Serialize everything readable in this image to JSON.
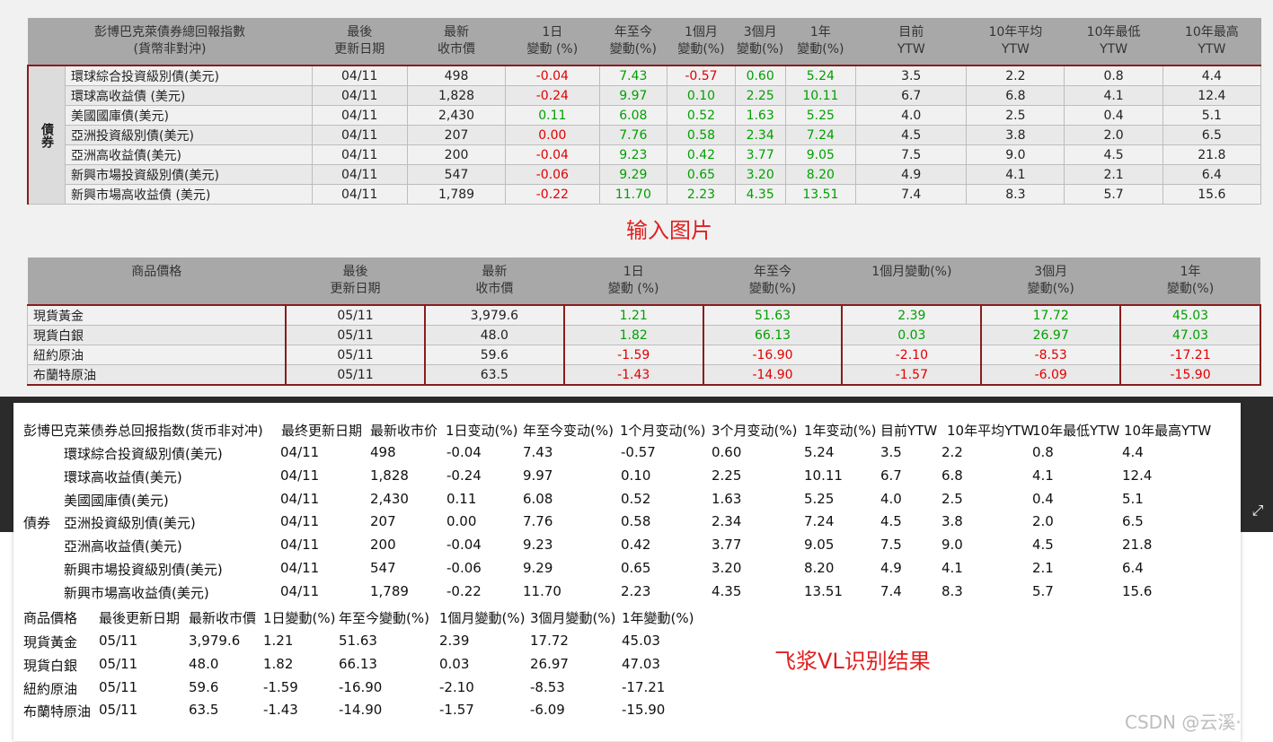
{
  "bond_table": {
    "headers": [
      {
        "l1": "彭博巴克萊債券總回報指數",
        "l2": "(貨幣非對沖)"
      },
      {
        "l1": "最後",
        "l2": "更新日期"
      },
      {
        "l1": "最新",
        "l2": "收市價"
      },
      {
        "l1": "1日",
        "l2": "變動 (%)"
      },
      {
        "l1": "年至今",
        "l2": "變動(%)"
      },
      {
        "l1": "1個月",
        "l2": "變動(%)"
      },
      {
        "l1": "3個月",
        "l2": "變動(%)"
      },
      {
        "l1": "1年",
        "l2": "變動(%)"
      },
      {
        "l1": "目前",
        "l2": "YTW"
      },
      {
        "l1": "10年平均",
        "l2": "YTW"
      },
      {
        "l1": "10年最低",
        "l2": "YTW"
      },
      {
        "l1": "10年最高",
        "l2": "YTW"
      }
    ],
    "group_label": "債券",
    "rows": [
      [
        "環球綜合投資級別債(美元)",
        "04/11",
        "498",
        "-0.04",
        "7.43",
        "-0.57",
        "0.60",
        "5.24",
        "3.5",
        "2.2",
        "0.8",
        "4.4"
      ],
      [
        "環球高收益債 (美元)",
        "04/11",
        "1,828",
        "-0.24",
        "9.97",
        "0.10",
        "2.25",
        "10.11",
        "6.7",
        "6.8",
        "4.1",
        "12.4"
      ],
      [
        "美國國庫債(美元)",
        "04/11",
        "2,430",
        "0.11",
        "6.08",
        "0.52",
        "1.63",
        "5.25",
        "4.0",
        "2.5",
        "0.4",
        "5.1"
      ],
      [
        "亞洲投資級別債(美元)",
        "04/11",
        "207",
        "0.00",
        "7.76",
        "0.58",
        "2.34",
        "7.24",
        "4.5",
        "3.8",
        "2.0",
        "6.5"
      ],
      [
        "亞洲高收益債(美元)",
        "04/11",
        "200",
        "-0.04",
        "9.23",
        "0.42",
        "3.77",
        "9.05",
        "7.5",
        "9.0",
        "4.5",
        "21.8"
      ],
      [
        "新興市場投資級別債(美元)",
        "04/11",
        "547",
        "-0.06",
        "9.29",
        "0.65",
        "3.20",
        "8.20",
        "4.9",
        "4.1",
        "2.1",
        "6.4"
      ],
      [
        "新興市場高收益債 (美元)",
        "04/11",
        "1,789",
        "-0.22",
        "11.70",
        "2.23",
        "4.35",
        "13.51",
        "7.4",
        "8.3",
        "5.7",
        "15.6"
      ]
    ]
  },
  "caption_input": "输入图片",
  "commodity_table": {
    "headers": [
      {
        "l1": "商品價格",
        "l2": ""
      },
      {
        "l1": "最後",
        "l2": "更新日期"
      },
      {
        "l1": "最新",
        "l2": "收市價"
      },
      {
        "l1": "1日",
        "l2": "變動 (%)"
      },
      {
        "l1": "年至今",
        "l2": "變動(%)"
      },
      {
        "l1": "1個月變動(%)",
        "l2": ""
      },
      {
        "l1": "3個月",
        "l2": "變動(%)"
      },
      {
        "l1": "1年",
        "l2": "變動(%)"
      }
    ],
    "rows": [
      [
        "現貨黃金",
        "05/11",
        "3,979.6",
        "1.21",
        "51.63",
        "2.39",
        "17.72",
        "45.03"
      ],
      [
        "現貨白銀",
        "05/11",
        "48.0",
        "1.82",
        "66.13",
        "0.03",
        "26.97",
        "47.03"
      ],
      [
        "紐約原油",
        "05/11",
        "59.6",
        "-1.59",
        "-16.90",
        "-2.10",
        "-8.53",
        "-17.21"
      ],
      [
        "布蘭特原油",
        "05/11",
        "63.5",
        "-1.43",
        "-14.90",
        "-1.57",
        "-6.09",
        "-15.90"
      ]
    ]
  },
  "ocr_result": {
    "bond_header": [
      "彭博巴克莱债券总回报指数(货币非对冲)",
      "最终更新日期",
      "最新收市价",
      "1日变动(%)",
      "年至今变动(%)",
      "1个月变动(%)",
      "3个月变动(%)",
      "1年变动(%)",
      "目前YTW",
      "10年平均YTW",
      "10年最低YTW",
      "10年最高YTW"
    ],
    "group_label": "債券",
    "bond_rows": [
      [
        "環球綜合投資級別債(美元)",
        "04/11",
        "498",
        "-0.04",
        "7.43",
        "-0.57",
        "0.60",
        "5.24",
        "3.5",
        "2.2",
        "0.8",
        "4.4"
      ],
      [
        "環球高收益債(美元)",
        "04/11",
        "1,828",
        "-0.24",
        "9.97",
        "0.10",
        "2.25",
        "10.11",
        "6.7",
        "6.8",
        "4.1",
        "12.4"
      ],
      [
        "美國國庫債(美元)",
        "04/11",
        "2,430",
        "0.11",
        "6.08",
        "0.52",
        "1.63",
        "5.25",
        "4.0",
        "2.5",
        "0.4",
        "5.1"
      ],
      [
        "亞洲投資級別債(美元)",
        "04/11",
        "207",
        "0.00",
        "7.76",
        "0.58",
        "2.34",
        "7.24",
        "4.5",
        "3.8",
        "2.0",
        "6.5"
      ],
      [
        "亞洲高收益債(美元)",
        "04/11",
        "200",
        "-0.04",
        "9.23",
        "0.42",
        "3.77",
        "9.05",
        "7.5",
        "9.0",
        "4.5",
        "21.8"
      ],
      [
        "新興市場投資級別債(美元)",
        "04/11",
        "547",
        "-0.06",
        "9.29",
        "0.65",
        "3.20",
        "8.20",
        "4.9",
        "4.1",
        "2.1",
        "6.4"
      ],
      [
        "新興市場高收益債(美元)",
        "04/11",
        "1,789",
        "-0.22",
        "11.70",
        "2.23",
        "4.35",
        "13.51",
        "7.4",
        "8.3",
        "5.7",
        "15.6"
      ]
    ],
    "commodity_header": [
      "商品價格",
      "最後更新日期",
      "最新收市價",
      "1日變動(%)",
      "年至今變動(%)",
      "1個月變動(%)",
      "3個月變動(%)",
      "1年變動(%)"
    ],
    "commodity_rows": [
      [
        "現貨黃金",
        "05/11",
        "3,979.6",
        "1.21",
        "51.63",
        "2.39",
        "17.72",
        "45.03"
      ],
      [
        "現貨白銀",
        "05/11",
        "48.0",
        "1.82",
        "66.13",
        "0.03",
        "26.97",
        "47.03"
      ],
      [
        "紐約原油",
        "05/11",
        "59.6",
        "-1.59",
        "-16.90",
        "-2.10",
        "-8.53",
        "-17.21"
      ],
      [
        "布蘭特原油",
        "05/11",
        "63.5",
        "-1.43",
        "-14.90",
        "-1.57",
        "-6.09",
        "-15.90"
      ]
    ]
  },
  "caption_result": "飞浆VL识别结果",
  "watermark": "CSDN @云溪·",
  "colors": {
    "negative": "#e00000",
    "positive": "#00a000",
    "header_bg": "#a8a8a8",
    "accent_border": "#8b1c1c",
    "caption": "#e02020"
  }
}
